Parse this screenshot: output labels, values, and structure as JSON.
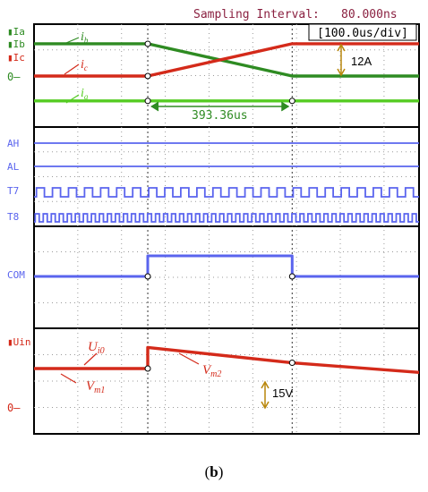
{
  "header": {
    "sampling_label": "Sampling Interval:",
    "sampling_value": "80.000ns"
  },
  "timebase": "100.0us/div",
  "caption": {
    "open": "(",
    "letter": "b",
    "close": ")"
  },
  "colors": {
    "green": "#2e8b22",
    "lime": "#55cc22",
    "red": "#d42a1a",
    "blue": "#5a64ee",
    "grid": "#9a9a9a",
    "text": "#8a2040",
    "frame": "#000000",
    "gold": "#b8860b"
  },
  "chart_data": [
    {
      "type": "line",
      "panel": "currents",
      "legend": [
        "Ia",
        "Ib",
        "Ic"
      ],
      "zero_label": "0",
      "series": [
        {
          "name": "Ib",
          "label": "ib",
          "points": [
            [
              0,
              3.5
            ],
            [
              2.6,
              3.5
            ],
            [
              5.9,
              0
            ],
            [
              8.8,
              0
            ]
          ]
        },
        {
          "name": "Ic",
          "label": "ic",
          "points": [
            [
              0,
              0
            ],
            [
              2.6,
              0
            ],
            [
              5.9,
              3.5
            ],
            [
              8.8,
              3.5
            ]
          ]
        },
        {
          "name": "Ia",
          "label": "ia",
          "points": [
            [
              0,
              -2.7
            ],
            [
              8.8,
              -2.7
            ]
          ]
        }
      ],
      "annotations": {
        "amplitude": "12A",
        "interval": "393.36us"
      }
    },
    {
      "type": "line",
      "panel": "logic",
      "series": [
        {
          "name": "AH",
          "pattern": "high"
        },
        {
          "name": "AL",
          "pattern": "low"
        },
        {
          "name": "T7",
          "pattern": "clock",
          "cycles": 24
        },
        {
          "name": "T8",
          "pattern": "clock",
          "cycles": 48
        }
      ]
    },
    {
      "type": "line",
      "panel": "common",
      "series": [
        {
          "name": "COM",
          "points": [
            [
              0,
              0
            ],
            [
              2.6,
              0
            ],
            [
              2.6,
              1
            ],
            [
              5.9,
              1
            ],
            [
              5.9,
              0
            ],
            [
              8.8,
              0
            ]
          ]
        }
      ]
    },
    {
      "type": "line",
      "panel": "voltage",
      "legend": [
        "Uin"
      ],
      "zero_label": "0",
      "series": [
        {
          "name": "Uin",
          "points": [
            [
              0,
              2.0
            ],
            [
              2.6,
              2.0
            ],
            [
              2.6,
              3.1
            ],
            [
              5.9,
              2.3
            ],
            [
              8.8,
              1.8
            ]
          ]
        }
      ],
      "annotations": {
        "U": "U",
        "U_sub": "i0",
        "Vm1": "V",
        "Vm1_sub": "m1",
        "Vm2": "V",
        "Vm2_sub": "m2",
        "step": "15V"
      }
    }
  ]
}
